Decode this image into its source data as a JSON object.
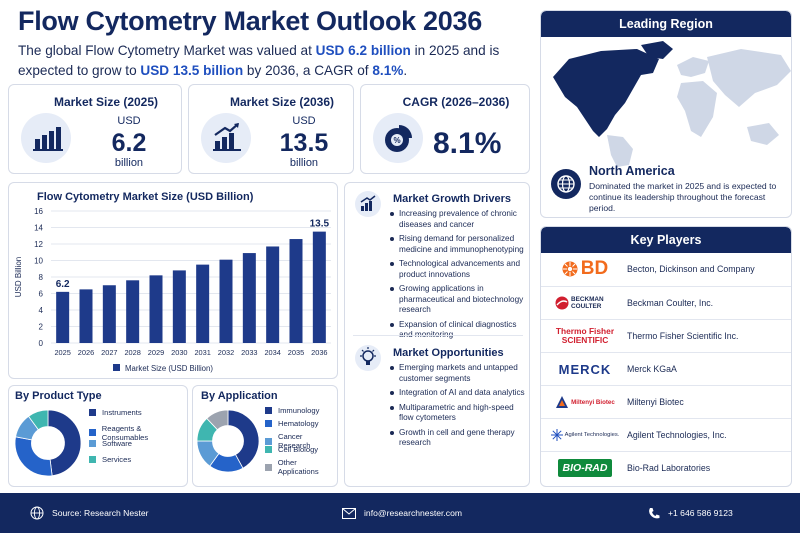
{
  "header": {
    "title": "Flow Cytometry Market Outlook 2036",
    "subtitle_pre": "The global Flow Cytometry Market was valued at ",
    "subtitle_v1": "USD 6.2 billion",
    "subtitle_mid1": " in 2025 and is expected to grow to ",
    "subtitle_v2": "USD 13.5 billion",
    "subtitle_mid2": " by 2036, a CAGR of ",
    "subtitle_v3": "8.1%",
    "subtitle_end": "."
  },
  "kpis": {
    "size2025": {
      "label": "Market Size (2025)",
      "unit": "USD",
      "value": "6.2",
      "suffix": "billion"
    },
    "size2036": {
      "label": "Market Size (2036)",
      "unit": "USD",
      "value": "13.5",
      "suffix": "billion"
    },
    "cagr": {
      "label": "CAGR (2026–2036)",
      "value": "8.1%",
      "icon_text": "%"
    }
  },
  "bar_chart": {
    "title": "Flow Cytometry Market Size (USD Billion)",
    "ylabel": "USD Billion",
    "legend": "Market Size (USD Billion)",
    "first_label": "6.2",
    "last_label": "13.5"
  },
  "growth": {
    "title": "Market Growth Drivers",
    "items": [
      "Increasing prevalence of chronic diseases and cancer",
      "Rising demand for personalized medicine and immunophenotyping",
      "Technological advancements and product innovations",
      "Growing applications in pharmaceutical and biotechnology research",
      "Expansion of clinical diagnostics and monitoring"
    ]
  },
  "opportunities": {
    "title": "Market Opportunities",
    "items": [
      "Emerging markets and untapped customer segments",
      "Integration of AI and data analytics",
      "Multiparametric and high-speed flow cytometers",
      "Growth in cell and gene therapy research"
    ]
  },
  "region": {
    "header": "Leading Region",
    "name": "North America",
    "desc": "Dominated the market in 2025 and is expected to continue its leadership throughout the forecast period."
  },
  "players": {
    "header": "Key Players",
    "items": [
      {
        "logo": "BD",
        "name": "Becton, Dickinson and Company"
      },
      {
        "logo": "BECKMAN COULTER",
        "name": "Beckman Coulter, Inc."
      },
      {
        "logo": "Thermo Fisher SCIENTIFIC",
        "name": "Thermo Fisher Scientific Inc."
      },
      {
        "logo": "MERCK",
        "name": "Merck KGaA"
      },
      {
        "logo": "Miltenyi Biotec",
        "name": "Miltenyi Biotec"
      },
      {
        "logo": "Agilent Technologies.",
        "name": "Agilent Technologies, Inc."
      },
      {
        "logo": "BIO-RAD",
        "name": "Bio-Rad Laboratories"
      }
    ]
  },
  "footer": {
    "source": "Source: Research Nester",
    "email": "info@researchnester.com",
    "phone": "+1 646 586 9123"
  },
  "colors": {
    "navy": "#13285f",
    "blue": "#1f4fbf",
    "bar": "#1e3a8a",
    "accent": "#1f4fbf"
  },
  "chart_data": [
    {
      "type": "bar",
      "title": "Flow Cytometry Market Size (USD Billion)",
      "xlabel": "",
      "ylabel": "USD Billion",
      "categories": [
        "2025",
        "2026",
        "2027",
        "2028",
        "2029",
        "2030",
        "2031",
        "2032",
        "2033",
        "2034",
        "2035",
        "2036"
      ],
      "series": [
        {
          "name": "Market Size (USD Billion)",
          "values": [
            6.2,
            6.5,
            7.0,
            7.6,
            8.2,
            8.8,
            9.5,
            10.1,
            10.9,
            11.7,
            12.6,
            13.5
          ]
        }
      ],
      "yticks": [
        0,
        2,
        4,
        6,
        8,
        10,
        12,
        14,
        16
      ],
      "ylim": [
        0,
        16
      ],
      "grid": true,
      "legend": "bottom"
    },
    {
      "type": "pie",
      "title": "By Product Type",
      "donut": true,
      "categories": [
        "Instruments",
        "Reagents & Consumables",
        "Software",
        "Services"
      ],
      "values": [
        48,
        30,
        12,
        10
      ],
      "colors": [
        "#1e3a8a",
        "#2563c9",
        "#5b9bd5",
        "#3fb6b0"
      ]
    },
    {
      "type": "pie",
      "title": "By Application",
      "donut": true,
      "categories": [
        "Immunology",
        "Hematology",
        "Cancer Research",
        "Cell Biology",
        "Other Applications"
      ],
      "values": [
        42,
        18,
        15,
        13,
        12
      ],
      "colors": [
        "#1e3a8a",
        "#2563c9",
        "#5b9bd5",
        "#3fb6b0",
        "#9ca3af"
      ]
    }
  ]
}
